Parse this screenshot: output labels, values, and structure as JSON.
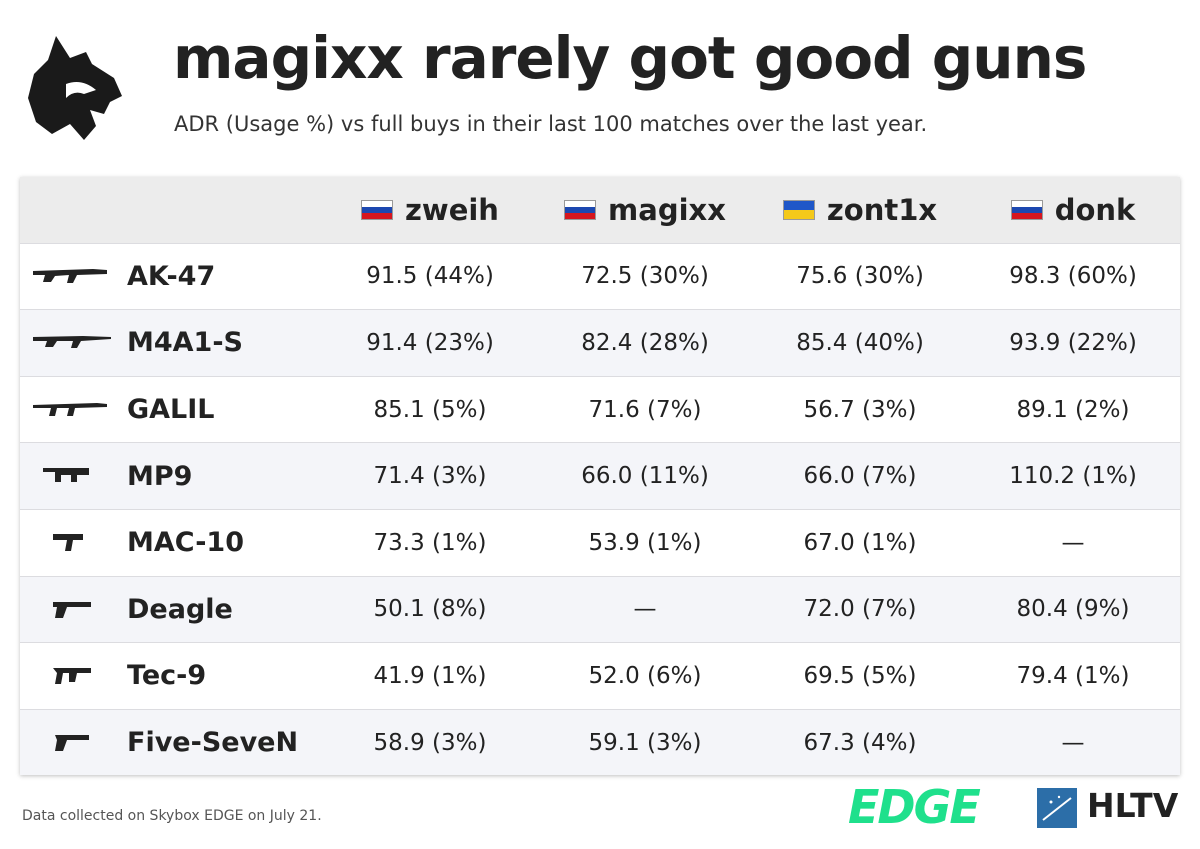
{
  "header": {
    "title": "magixx rarely got good guns",
    "subtitle": "ADR (Usage %) vs full buys in their last 100 matches over the last year."
  },
  "table": {
    "columns": [
      "zweih",
      "magixx",
      "zont1x",
      "donk"
    ],
    "rows": [
      {
        "weapon": "AK-47",
        "cells": [
          "91.5 (44%)",
          "72.5 (30%)",
          "75.6 (30%)",
          "98.3 (60%)"
        ]
      },
      {
        "weapon": "M4A1-S",
        "cells": [
          "91.4 (23%)",
          "82.4 (28%)",
          "85.4 (40%)",
          "93.9 (22%)"
        ]
      },
      {
        "weapon": "GALIL",
        "cells": [
          "85.1 (5%)",
          "71.6 (7%)",
          "56.7 (3%)",
          "89.1 (2%)"
        ]
      },
      {
        "weapon": "MP9",
        "cells": [
          "71.4 (3%)",
          "66.0 (11%)",
          "66.0 (7%)",
          "110.2 (1%)"
        ]
      },
      {
        "weapon": "MAC-10",
        "cells": [
          "73.3 (1%)",
          "53.9 (1%)",
          "67.0 (1%)",
          "—"
        ]
      },
      {
        "weapon": "Deagle",
        "cells": [
          "50.1 (8%)",
          "—",
          "72.0 (7%)",
          "80.4 (9%)"
        ]
      },
      {
        "weapon": "Tec-9",
        "cells": [
          "41.9 (1%)",
          "52.0 (6%)",
          "69.5 (5%)",
          "79.4 (1%)"
        ]
      },
      {
        "weapon": "Five-SeveN",
        "cells": [
          "58.9 (3%)",
          "59.1 (3%)",
          "67.3 (4%)",
          "—"
        ]
      }
    ]
  },
  "footer": {
    "note": "Data collected on Skybox EDGE on July 21.",
    "logos": [
      "EDGE",
      "HLTV"
    ]
  }
}
